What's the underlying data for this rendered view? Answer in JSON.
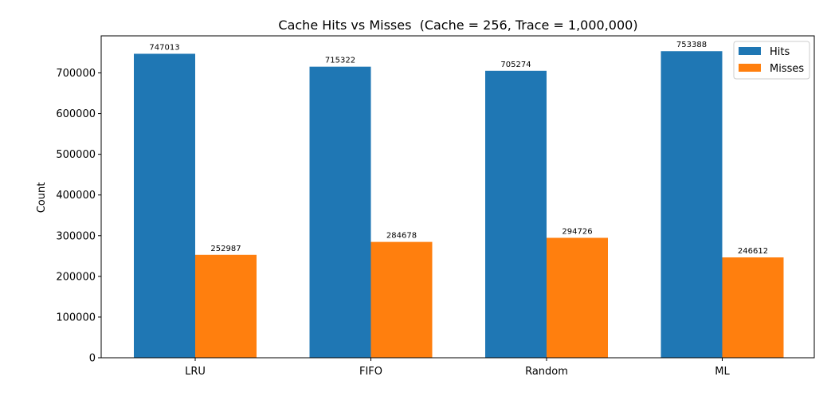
{
  "chart_data": {
    "type": "bar",
    "title": "Cache Hits vs Misses  (Cache = 256, Trace = 1,000,000)",
    "xlabel": "",
    "ylabel": "Count",
    "categories": [
      "LRU",
      "FIFO",
      "Random",
      "ML"
    ],
    "series": [
      {
        "name": "Hits",
        "color": "#1f77b4",
        "values": [
          747013,
          715322,
          705274,
          753388
        ]
      },
      {
        "name": "Misses",
        "color": "#ff7f0e",
        "values": [
          252987,
          284678,
          294726,
          246612
        ]
      }
    ],
    "ylim": [
      0,
      791058
    ],
    "yticks": [
      0,
      100000,
      200000,
      300000,
      400000,
      500000,
      600000,
      700000
    ],
    "grid": false,
    "legend_position": "top-right",
    "data_labels": true
  }
}
